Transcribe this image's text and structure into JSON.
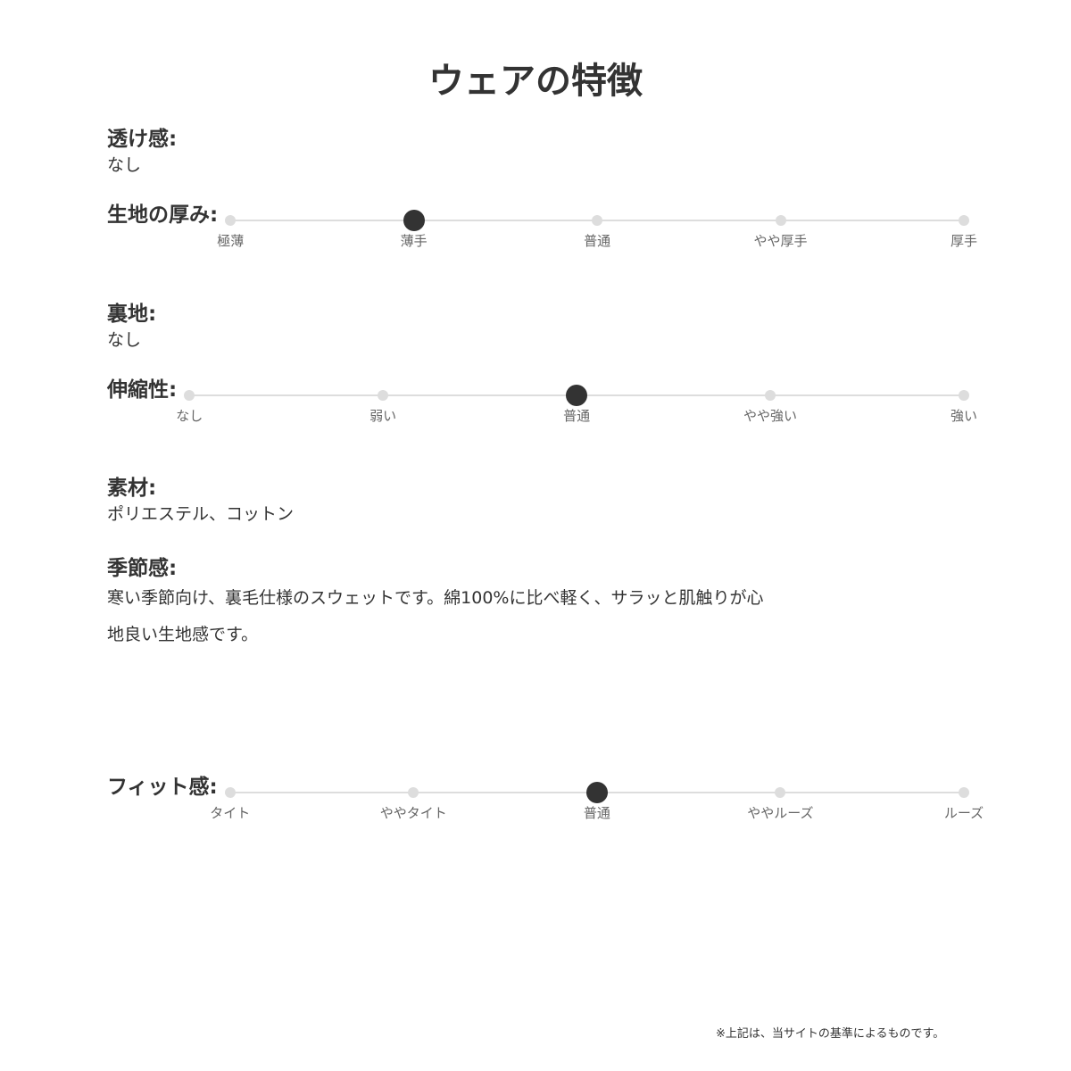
{
  "title": "ウェアの特徴",
  "sheer": {
    "label": "透け感:",
    "value": "なし"
  },
  "thickness": {
    "label": "生地の厚み:",
    "options": [
      "極薄",
      "薄手",
      "普通",
      "やや厚手",
      "厚手"
    ],
    "selected": 1
  },
  "lining": {
    "label": "裏地:",
    "value": "なし"
  },
  "stretch": {
    "label": "伸縮性:",
    "options": [
      "なし",
      "弱い",
      "普通",
      "やや強い",
      "強い"
    ],
    "selected": 2
  },
  "material": {
    "label": "素材:",
    "value": "ポリエステル、コットン"
  },
  "season": {
    "label": "季節感:",
    "value": "寒い季節向け、裏毛仕様のスウェットです。綿100%に比べ軽く、サラッと肌触りが心地良い生地感です。"
  },
  "fit": {
    "label": "フィット感:",
    "options": [
      "タイト",
      "ややタイト",
      "普通",
      "ややルーズ",
      "ルーズ"
    ],
    "selected": 2
  },
  "note": "※上記は、当サイトの基準によるものです。",
  "colors": {
    "text": "#333333",
    "track": "#dddddd",
    "selected": "#333333"
  }
}
